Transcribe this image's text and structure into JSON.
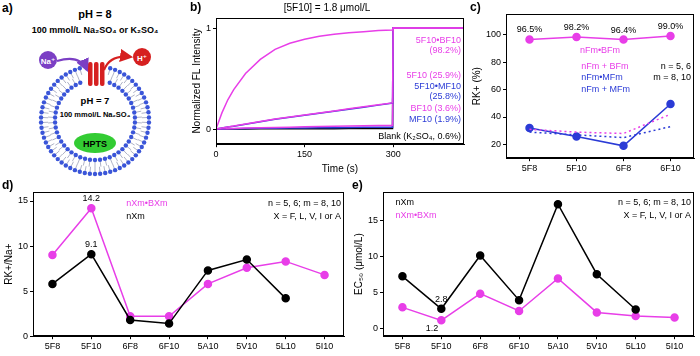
{
  "diagram": {
    "panel": "a)",
    "outside": {
      "ph": "pH = 8",
      "solution": "100 mmol/L Na₂SO₄ or K₂SO₄"
    },
    "inside": {
      "ph": "pH = 7",
      "solution": "100 mmol/L Na₂SO₄"
    },
    "ions": {
      "in": "Na⁺",
      "out": "H⁺"
    },
    "dye": "HPTS"
  },
  "chart_data": [
    {
      "panel": "b)",
      "type": "line",
      "title": "[5F10] = 1.8 μmol/L",
      "x_label": "Time (s)",
      "y_label": "Normalized FL Intensity",
      "x": [
        0,
        10,
        20,
        30,
        50,
        75,
        100,
        125,
        150,
        175,
        200,
        225,
        250,
        275,
        299,
        300,
        310,
        420
      ],
      "xlim": [
        0,
        420
      ],
      "xticks": [
        0,
        150,
        300
      ],
      "ylim": [
        -0.15,
        1.1
      ],
      "yticks": [
        0,
        1
      ],
      "grid": false,
      "series": [
        {
          "label": [
            "5F10•BF10",
            "(98.2%)"
          ],
          "color": "#e83ee8",
          "values": [
            0,
            0.16,
            0.29,
            0.39,
            0.55,
            0.69,
            0.79,
            0.85,
            0.89,
            0.92,
            0.94,
            0.955,
            0.965,
            0.975,
            0.982,
            1,
            1,
            1
          ]
        },
        {
          "label": [
            "5F10 (25.9%)"
          ],
          "color": "#e83ee8",
          "values": [
            0,
            0.01,
            0.02,
            0.03,
            0.05,
            0.075,
            0.1,
            0.12,
            0.14,
            0.16,
            0.18,
            0.2,
            0.22,
            0.24,
            0.259,
            1,
            1,
            1
          ]
        },
        {
          "label": [
            "5F10•MF10",
            "(25.8%)"
          ],
          "color": "#2b3bd6",
          "values": [
            0,
            0.01,
            0.02,
            0.028,
            0.048,
            0.072,
            0.097,
            0.117,
            0.137,
            0.157,
            0.177,
            0.197,
            0.217,
            0.237,
            0.258,
            1,
            1,
            1
          ]
        },
        {
          "label": [
            "BF10 (3.6%)"
          ],
          "color": "#e83ee8",
          "values": [
            0,
            0.002,
            0.004,
            0.006,
            0.01,
            0.013,
            0.016,
            0.019,
            0.022,
            0.025,
            0.027,
            0.03,
            0.032,
            0.034,
            0.036,
            1,
            1,
            1
          ]
        },
        {
          "label": [
            "MF10 (1.9%)"
          ],
          "color": "#2b3bd6",
          "values": [
            0,
            0.001,
            0.002,
            0.003,
            0.005,
            0.007,
            0.008,
            0.01,
            0.011,
            0.013,
            0.014,
            0.016,
            0.017,
            0.018,
            0.019,
            1,
            1,
            1
          ]
        },
        {
          "label": [
            "Blank (K₂SO₄, 0.6%)"
          ],
          "color": "#000000",
          "values": [
            0,
            0,
            0.001,
            0.001,
            0.001,
            0.002,
            0.002,
            0.003,
            0.003,
            0.004,
            0.004,
            0.005,
            0.005,
            0.006,
            0.006,
            1,
            1,
            1
          ]
        }
      ]
    },
    {
      "panel": "c)",
      "type": "line",
      "y_label": "RK+ (%)",
      "categories": [
        "5F8",
        "5F10",
        "6F8",
        "6F10"
      ],
      "ylim": [
        10,
        115
      ],
      "yticks": [
        20,
        40,
        60,
        80,
        100
      ],
      "grid": false,
      "series": [
        {
          "name": "nFm•BFm",
          "color": "#e83ee8",
          "marker": "circle",
          "line_style": "solid",
          "values": [
            96.5,
            98.2,
            96.4,
            99.0
          ],
          "data_labels": true,
          "value_labels": [
            "96.5%",
            "98.2%",
            "96.4%",
            "99.0%"
          ]
        },
        {
          "name": "nFm + BFm",
          "color": "#e83ee8",
          "marker": "none",
          "line_style": "dotted",
          "values": [
            31,
            29,
            28,
            42
          ]
        },
        {
          "name": "nFm•MFm",
          "color": "#2b3bd6",
          "marker": "circle",
          "line_style": "solid",
          "values": [
            32,
            25.8,
            19,
            49.5
          ]
        },
        {
          "name": "nFm + MFm",
          "color": "#2b3bd6",
          "marker": "none",
          "line_style": "dotted",
          "values": [
            29,
            27,
            25,
            33
          ]
        }
      ],
      "notes": [
        "n = 5, 6",
        "m = 8, 10"
      ]
    },
    {
      "panel": "d)",
      "type": "line",
      "y_label": "RK+/Na+",
      "categories": [
        "5F8",
        "5F10",
        "6F8",
        "6F10",
        "5A10",
        "5V10",
        "5L10",
        "5I10"
      ],
      "ylim": [
        0,
        16
      ],
      "yticks": [
        0,
        5,
        10,
        15
      ],
      "grid": false,
      "series": [
        {
          "name": "nXm",
          "color": "#000000",
          "marker": "circle",
          "line_style": "solid",
          "values": [
            5.8,
            9.1,
            1.8,
            1.4,
            7.3,
            8.5,
            4.2,
            null
          ],
          "value_labels": [
            null,
            "9.1",
            null,
            null,
            null,
            null,
            null,
            null
          ]
        },
        {
          "name": "nXm•BXm",
          "color": "#e83ee8",
          "marker": "circle",
          "line_style": "solid",
          "values": [
            9.0,
            14.2,
            2.2,
            2.2,
            5.8,
            7.6,
            8.3,
            6.8
          ],
          "value_labels": [
            null,
            "14.2",
            null,
            null,
            null,
            null,
            null,
            null
          ]
        }
      ],
      "notes": [
        "n = 5, 6; m = 8, 10",
        "X = F, L, V, I or A"
      ]
    },
    {
      "panel": "e)",
      "type": "line",
      "y_label": "EC₅₀ (μmol/L)",
      "categories": [
        "5F8",
        "5F10",
        "6F8",
        "6F10",
        "5A10",
        "5V10",
        "5L10",
        "5I10"
      ],
      "ylim": [
        -1,
        19
      ],
      "yticks": [
        0,
        5,
        10,
        15
      ],
      "grid": false,
      "series": [
        {
          "name": "nXm",
          "color": "#000000",
          "marker": "circle",
          "line_style": "solid",
          "values": [
            7.3,
            2.8,
            10.2,
            4.0,
            17.3,
            7.6,
            2.7,
            null
          ],
          "value_labels": [
            null,
            "2.8",
            null,
            null,
            null,
            null,
            null,
            null
          ]
        },
        {
          "name": "nXm•BXm",
          "color": "#e83ee8",
          "marker": "circle",
          "line_style": "solid",
          "values": [
            3.0,
            1.2,
            4.9,
            2.5,
            7.0,
            2.3,
            1.8,
            1.6
          ],
          "value_labels": [
            null,
            "1.2",
            null,
            null,
            null,
            null,
            null,
            null
          ]
        }
      ],
      "notes": [
        "n = 5, 6; m = 8, 10",
        "X = F, L, V, I or A"
      ]
    }
  ]
}
